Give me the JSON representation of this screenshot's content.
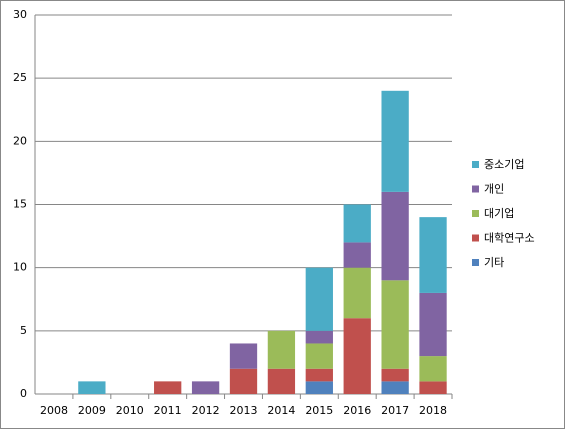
{
  "chart_data": {
    "type": "stacked-bar",
    "categories": [
      "2008",
      "2009",
      "2010",
      "2011",
      "2012",
      "2013",
      "2014",
      "2015",
      "2016",
      "2017",
      "2018"
    ],
    "series": [
      {
        "name": "기타",
        "color": "#4f81bd",
        "values": [
          0,
          0,
          0,
          0,
          0,
          0,
          0,
          1,
          0,
          1,
          0
        ]
      },
      {
        "name": "대학연구소",
        "color": "#c0504d",
        "values": [
          0,
          0,
          0,
          1,
          0,
          2,
          2,
          1,
          6,
          1,
          1
        ]
      },
      {
        "name": "대기업",
        "color": "#9bbb59",
        "values": [
          0,
          0,
          0,
          0,
          0,
          0,
          3,
          2,
          4,
          7,
          2
        ]
      },
      {
        "name": "개인",
        "color": "#8064a2",
        "values": [
          0,
          0,
          0,
          0,
          1,
          2,
          0,
          1,
          2,
          7,
          5
        ]
      },
      {
        "name": "중소기업",
        "color": "#4bacc6",
        "values": [
          0,
          1,
          0,
          0,
          0,
          0,
          0,
          5,
          3,
          8,
          6
        ]
      }
    ],
    "ylim": [
      0,
      30
    ],
    "yticks": [
      0,
      5,
      10,
      15,
      20,
      25,
      30
    ],
    "grid": true,
    "legend": "right"
  }
}
